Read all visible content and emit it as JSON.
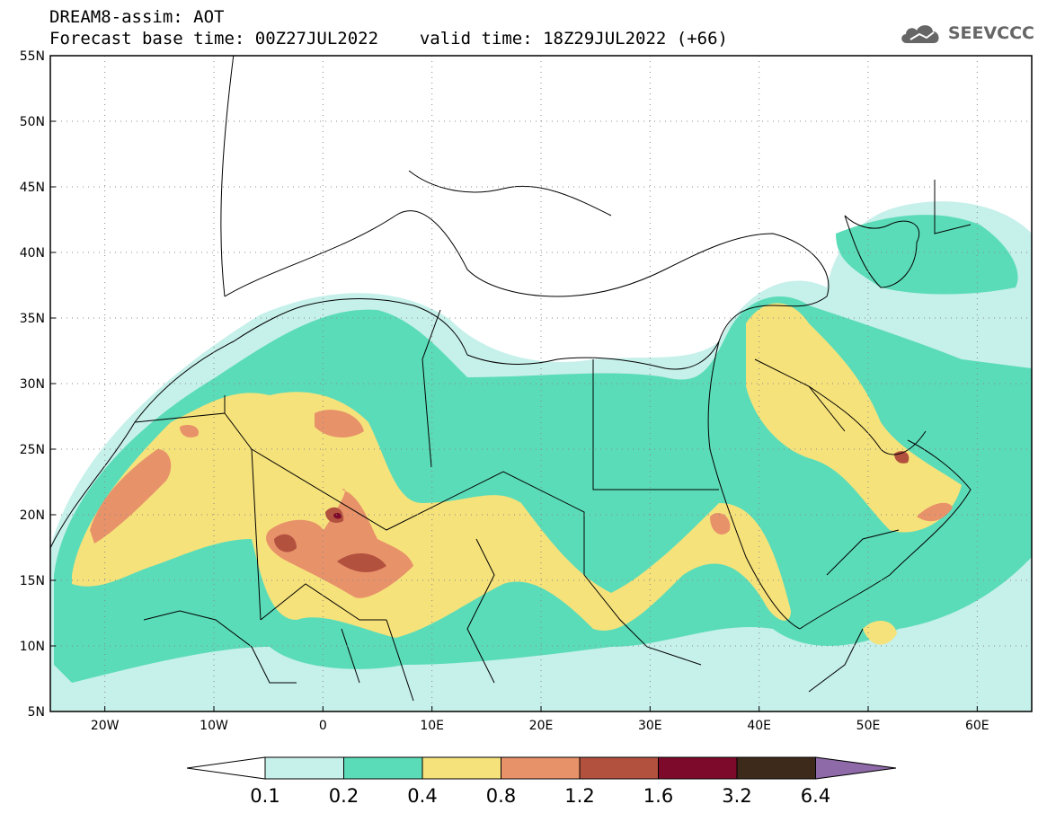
{
  "header": {
    "title": "DREAM8-assim: AOT",
    "base_time_label": "Forecast base time: 00Z27JUL2022",
    "valid_time_label": "valid time: 18Z29JUL2022 (+66)",
    "logo_text": "SEEVCCC",
    "logo_icon": "cloud-icon"
  },
  "map": {
    "lat_ticks": [
      "55N",
      "50N",
      "45N",
      "40N",
      "35N",
      "30N",
      "25N",
      "20N",
      "15N",
      "10N",
      "5N"
    ],
    "lon_ticks": [
      "20W",
      "10W",
      "0",
      "10E",
      "20E",
      "30E",
      "40E",
      "50E",
      "60E"
    ],
    "lat_range": [
      5,
      55
    ],
    "lon_range": [
      -25,
      65
    ],
    "grid": "dotted"
  },
  "colorbar": {
    "labels": [
      "0.1",
      "0.2",
      "0.4",
      "0.8",
      "1.2",
      "1.6",
      "3.2",
      "6.4"
    ],
    "colors": [
      "#ffffff",
      "#c6f0ea",
      "#5bdcb8",
      "#f6e27b",
      "#e8926a",
      "#b3513f",
      "#7d0a2a",
      "#3e2a1a",
      "#8e6aa8"
    ]
  }
}
